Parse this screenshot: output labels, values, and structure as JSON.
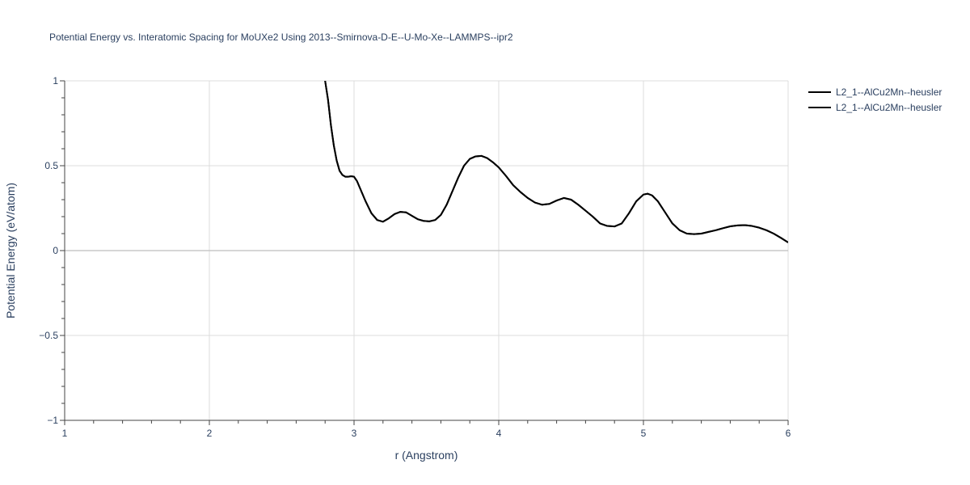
{
  "chart_data": {
    "type": "line",
    "title": "Potential Energy vs. Interatomic Spacing for MoUXe2 Using 2013--Smirnova-D-E--U-Mo-Xe--LAMMPS--ipr2",
    "xlabel": "r (Angstrom)",
    "ylabel": "Potential Energy (eV/atom)",
    "xlim": [
      1,
      6
    ],
    "ylim": [
      -1,
      1
    ],
    "xticks": [
      1,
      2,
      3,
      4,
      5,
      6
    ],
    "xtick_labels": [
      "1",
      "2",
      "3",
      "4",
      "5",
      "6"
    ],
    "yticks": [
      -1,
      -0.5,
      0,
      0.5,
      1
    ],
    "ytick_labels": [
      "−1",
      "−0.5",
      "0",
      "0.5",
      "1"
    ],
    "grid": true,
    "legend_position": "top-right",
    "series": [
      {
        "name": "L2_1--AlCu2Mn--heusler",
        "color": "#000000",
        "x": [
          2.8,
          2.82,
          2.84,
          2.86,
          2.88,
          2.9,
          2.92,
          2.94,
          2.96,
          2.98,
          3.0,
          3.02,
          3.05,
          3.08,
          3.12,
          3.16,
          3.2,
          3.24,
          3.28,
          3.32,
          3.36,
          3.4,
          3.44,
          3.48,
          3.52,
          3.56,
          3.6,
          3.64,
          3.68,
          3.72,
          3.76,
          3.8,
          3.84,
          3.88,
          3.92,
          3.96,
          4.0,
          4.05,
          4.1,
          4.15,
          4.2,
          4.25,
          4.3,
          4.35,
          4.4,
          4.45,
          4.5,
          4.55,
          4.6,
          4.65,
          4.7,
          4.75,
          4.8,
          4.85,
          4.9,
          4.95,
          5.0,
          5.03,
          5.06,
          5.1,
          5.15,
          5.2,
          5.25,
          5.3,
          5.35,
          5.4,
          5.45,
          5.5,
          5.55,
          5.6,
          5.65,
          5.7,
          5.75,
          5.8,
          5.85,
          5.9,
          5.95,
          6.0
        ],
        "y": [
          1.0,
          0.89,
          0.74,
          0.62,
          0.53,
          0.47,
          0.445,
          0.435,
          0.435,
          0.438,
          0.435,
          0.41,
          0.35,
          0.29,
          0.22,
          0.18,
          0.17,
          0.19,
          0.215,
          0.228,
          0.225,
          0.205,
          0.185,
          0.175,
          0.172,
          0.18,
          0.21,
          0.27,
          0.35,
          0.43,
          0.5,
          0.54,
          0.555,
          0.558,
          0.545,
          0.52,
          0.49,
          0.44,
          0.385,
          0.345,
          0.31,
          0.283,
          0.27,
          0.275,
          0.295,
          0.31,
          0.3,
          0.27,
          0.235,
          0.2,
          0.16,
          0.145,
          0.142,
          0.16,
          0.22,
          0.29,
          0.33,
          0.335,
          0.325,
          0.29,
          0.225,
          0.16,
          0.12,
          0.1,
          0.097,
          0.1,
          0.11,
          0.12,
          0.132,
          0.143,
          0.148,
          0.15,
          0.145,
          0.135,
          0.12,
          0.1,
          0.075,
          0.048
        ]
      },
      {
        "name": "L2_1--AlCu2Mn--heusler",
        "color": "#000000",
        "x": [
          2.8,
          2.82,
          2.84,
          2.86,
          2.88,
          2.9,
          2.92,
          2.94,
          2.96,
          2.98,
          3.0,
          3.02,
          3.05,
          3.08,
          3.12,
          3.16,
          3.2,
          3.24,
          3.28,
          3.32,
          3.36,
          3.4,
          3.44,
          3.48,
          3.52,
          3.56,
          3.6,
          3.64,
          3.68,
          3.72,
          3.76,
          3.8,
          3.84,
          3.88,
          3.92,
          3.96,
          4.0,
          4.05,
          4.1,
          4.15,
          4.2,
          4.25,
          4.3,
          4.35,
          4.4,
          4.45,
          4.5,
          4.55,
          4.6,
          4.65,
          4.7,
          4.75,
          4.8,
          4.85,
          4.9,
          4.95,
          5.0,
          5.03,
          5.06,
          5.1,
          5.15,
          5.2,
          5.25,
          5.3,
          5.35,
          5.4,
          5.45,
          5.5,
          5.55,
          5.6,
          5.65,
          5.7,
          5.75,
          5.8,
          5.85,
          5.9,
          5.95,
          6.0
        ],
        "y": [
          1.0,
          0.89,
          0.74,
          0.62,
          0.53,
          0.47,
          0.445,
          0.435,
          0.435,
          0.438,
          0.435,
          0.41,
          0.35,
          0.29,
          0.22,
          0.18,
          0.17,
          0.19,
          0.215,
          0.228,
          0.225,
          0.205,
          0.185,
          0.175,
          0.172,
          0.18,
          0.21,
          0.27,
          0.35,
          0.43,
          0.5,
          0.54,
          0.555,
          0.558,
          0.545,
          0.52,
          0.49,
          0.44,
          0.385,
          0.345,
          0.31,
          0.283,
          0.27,
          0.275,
          0.295,
          0.31,
          0.3,
          0.27,
          0.235,
          0.2,
          0.16,
          0.145,
          0.142,
          0.16,
          0.22,
          0.29,
          0.33,
          0.335,
          0.325,
          0.29,
          0.225,
          0.16,
          0.12,
          0.1,
          0.097,
          0.1,
          0.11,
          0.12,
          0.132,
          0.143,
          0.148,
          0.15,
          0.145,
          0.135,
          0.12,
          0.1,
          0.075,
          0.048
        ]
      }
    ]
  }
}
